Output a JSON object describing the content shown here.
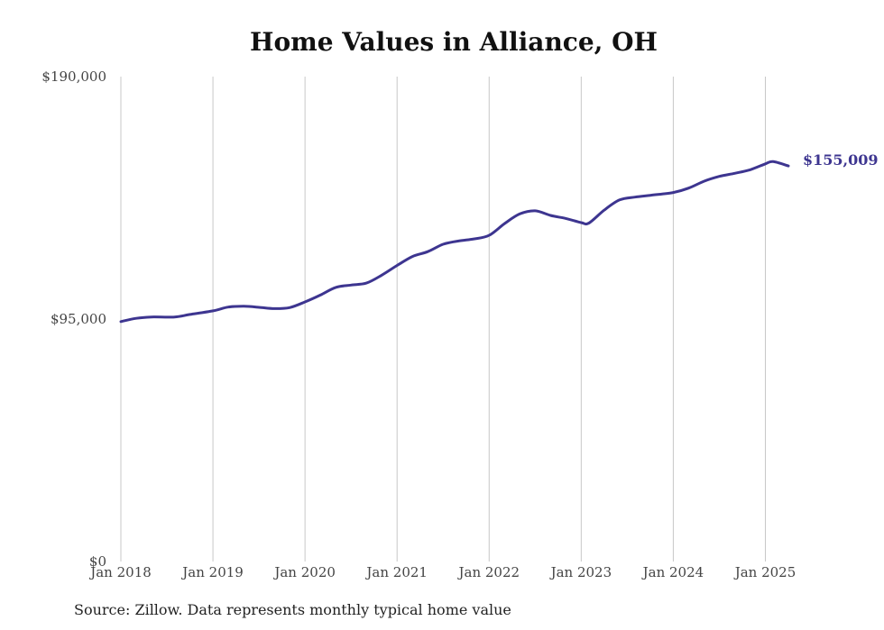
{
  "chart_data": {
    "type": "line",
    "title": "Home Values in Alliance, OH",
    "source": "Source: Zillow. Data represents monthly typical home value",
    "y_ticks": [
      {
        "value": 0,
        "label": "$0"
      },
      {
        "value": 95000,
        "label": "$95,000"
      },
      {
        "value": 190000,
        "label": "$190,000"
      }
    ],
    "ylim": [
      0,
      190000
    ],
    "x_ticks": [
      {
        "date": "2018-01",
        "label": "Jan 2018"
      },
      {
        "date": "2019-01",
        "label": "Jan 2019"
      },
      {
        "date": "2020-01",
        "label": "Jan 2020"
      },
      {
        "date": "2021-01",
        "label": "Jan 2021"
      },
      {
        "date": "2022-01",
        "label": "Jan 2022"
      },
      {
        "date": "2023-01",
        "label": "Jan 2023"
      },
      {
        "date": "2024-01",
        "label": "Jan 2024"
      },
      {
        "date": "2025-01",
        "label": "Jan 2025"
      }
    ],
    "xlim": [
      "2018-01",
      "2025-04"
    ],
    "grid": "vertical",
    "line_color": "#3d3590",
    "end_label": "$155,009",
    "series": [
      {
        "x": [
          "2018-01",
          "2018-03",
          "2018-05",
          "2018-08",
          "2018-10",
          "2019-01",
          "2019-03",
          "2019-05",
          "2019-07",
          "2019-09",
          "2019-11",
          "2020-01",
          "2020-03",
          "2020-05",
          "2020-07",
          "2020-09",
          "2020-11",
          "2021-01",
          "2021-03",
          "2021-05",
          "2021-07",
          "2021-09",
          "2021-11",
          "2022-01",
          "2022-03",
          "2022-05",
          "2022-07",
          "2022-09",
          "2022-11",
          "2023-01",
          "2023-02",
          "2023-04",
          "2023-06",
          "2023-08",
          "2023-10",
          "2024-01",
          "2024-03",
          "2024-05",
          "2024-07",
          "2024-09",
          "2024-11",
          "2025-01",
          "2025-02",
          "2025-04"
        ],
        "y": [
          94000,
          95300,
          95800,
          95800,
          96800,
          98200,
          99700,
          100000,
          99600,
          99100,
          99500,
          101700,
          104400,
          107400,
          108300,
          109100,
          112200,
          116000,
          119500,
          121400,
          124300,
          125600,
          126400,
          127800,
          132400,
          136200,
          137400,
          135600,
          134400,
          132800,
          132600,
          137700,
          141700,
          142800,
          143500,
          144600,
          146300,
          149000,
          150900,
          152100,
          153500,
          155800,
          156700,
          155009
        ]
      }
    ]
  }
}
